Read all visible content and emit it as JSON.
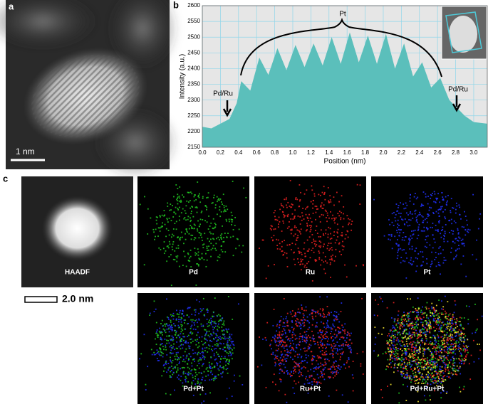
{
  "figure": {
    "panel_a": {
      "label": "a",
      "scale_bar": "1 nm"
    },
    "panel_b": {
      "label": "b"
    },
    "panel_c": {
      "label": "c",
      "scale_bar": "2.0 nm",
      "maps": [
        "HAADF",
        "Pd",
        "Ru",
        "Pt",
        "Pd+Pt",
        "Ru+Pt",
        "Pd+Ru+Pt"
      ]
    }
  },
  "chart_data": {
    "type": "area",
    "xlabel": "Position (nm)",
    "ylabel": "Intensity (a.u.)",
    "annotations": [
      "Pt",
      "Pd/Ru",
      "Pd/Ru"
    ],
    "color": "#5bbfbb",
    "grid": true,
    "x": [
      0,
      0.1,
      0.2,
      0.3,
      0.38,
      0.43,
      0.53,
      0.63,
      0.73,
      0.83,
      0.93,
      1.03,
      1.13,
      1.23,
      1.33,
      1.43,
      1.53,
      1.63,
      1.73,
      1.83,
      1.93,
      2.03,
      2.13,
      2.23,
      2.33,
      2.43,
      2.53,
      2.63,
      2.73,
      2.8,
      2.9,
      3.0,
      3.15
    ],
    "values": [
      2215,
      2210,
      2225,
      2240,
      2290,
      2360,
      2330,
      2435,
      2380,
      2465,
      2395,
      2475,
      2405,
      2480,
      2410,
      2500,
      2415,
      2515,
      2420,
      2505,
      2415,
      2510,
      2400,
      2480,
      2375,
      2420,
      2340,
      2370,
      2300,
      2280,
      2250,
      2230,
      2225
    ],
    "xlim": [
      0,
      3.15
    ],
    "ylim": [
      2150,
      2600
    ],
    "xticks": [
      {
        "value": 0,
        "label": "0.0"
      },
      0.2,
      0.4,
      0.6,
      0.8,
      {
        "value": 1,
        "label": "1.0"
      },
      1.2,
      1.4,
      1.6,
      1.8,
      {
        "value": 2,
        "label": "2.0"
      },
      2.2,
      2.4,
      2.6,
      2.8,
      {
        "value": 3,
        "label": "3.0"
      }
    ],
    "yticks": [
      2150,
      2200,
      2250,
      2300,
      2350,
      2400,
      2450,
      2500,
      2550,
      2600
    ]
  }
}
